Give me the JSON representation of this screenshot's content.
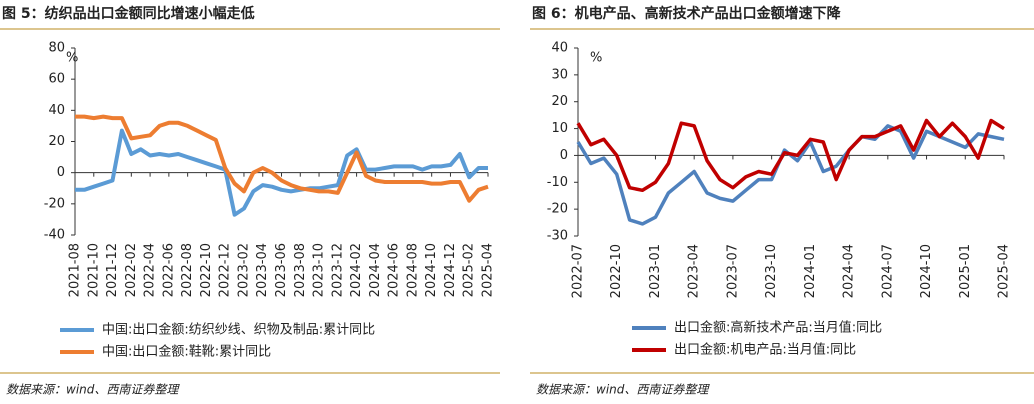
{
  "chart_data": [
    {
      "type": "line",
      "title": "图 5：纺织品出口金额同比增速小幅走低",
      "categories": [
        "2021-08",
        null,
        "2021-10",
        null,
        "2021-12",
        null,
        "2022-02",
        null,
        "2022-04",
        null,
        "2022-06",
        null,
        "2022-08",
        null,
        "2022-10",
        null,
        "2022-12",
        null,
        "2023-02",
        null,
        "2023-04",
        null,
        "2023-06",
        null,
        "2023-08",
        null,
        "2023-10",
        null,
        "2023-12",
        null,
        "2024-02",
        null,
        "2024-04",
        null,
        "2024-06",
        null,
        "2024-08",
        null,
        "2024-10",
        null,
        "2024-12",
        null,
        "2025-02",
        null,
        "2025-04"
      ],
      "series": [
        {
          "name": "中国:出口金额:纺织纱线、织物及制品:累计同比",
          "color": "#5b9bd5",
          "values": [
            -11,
            -11,
            -9,
            -7,
            -5,
            27,
            12,
            15,
            11,
            12,
            11,
            12,
            10,
            8,
            6,
            4,
            2,
            -27,
            -23,
            -12,
            -8,
            -9,
            -11,
            -12,
            -11,
            -10,
            -10,
            -9,
            -8,
            11,
            15,
            2,
            2,
            3,
            4,
            4,
            4,
            2,
            4,
            4,
            5,
            12,
            -3,
            3,
            3
          ]
        },
        {
          "name": "中国:出口金额:鞋靴:累计同比",
          "color": "#ed7d31",
          "values": [
            36,
            36,
            35,
            36,
            35,
            35,
            22,
            23,
            24,
            30,
            32,
            32,
            30,
            27,
            24,
            21,
            3,
            -7,
            -12,
            0,
            3,
            0,
            -5,
            -8,
            -10,
            -11,
            -12,
            -12,
            -13,
            0,
            13,
            -2,
            -5,
            -6,
            -6,
            -6,
            -6,
            -6,
            -7,
            -7,
            -6,
            -6,
            -18,
            -11,
            -9
          ]
        }
      ],
      "ylim": [
        -40,
        80
      ],
      "yticks": [
        -40,
        -20,
        0,
        20,
        40,
        60,
        80
      ],
      "y_unit": "%",
      "source": "数据来源：wind、西南证券整理"
    },
    {
      "type": "line",
      "title": "图 6：机电产品、高新技术产品出口金额增速下降",
      "categories": [
        "2022-07",
        null,
        null,
        "2022-10",
        null,
        null,
        "2023-01",
        null,
        null,
        "2023-04",
        null,
        null,
        "2023-07",
        null,
        null,
        "2023-10",
        null,
        null,
        "2024-01",
        null,
        null,
        "2024-04",
        null,
        null,
        "2024-07",
        null,
        null,
        "2024-10",
        null,
        null,
        "2025-01",
        null,
        null,
        "2025-04"
      ],
      "series": [
        {
          "name": "出口金额:高新技术产品:当月值:同比",
          "color": "#4f81bd",
          "values": [
            5,
            -3,
            -1,
            -7,
            -24,
            -25.5,
            -23,
            -14,
            -10,
            -6,
            -14,
            -16,
            -17,
            -13,
            -9,
            -9,
            2,
            -2,
            5,
            -6,
            -4,
            2,
            7,
            6,
            11,
            9,
            -1,
            9,
            7,
            5,
            3,
            8,
            7,
            6
          ]
        },
        {
          "name": "出口金额:机电产品:当月值:同比",
          "color": "#c00000",
          "values": [
            12,
            4,
            6,
            0,
            -12,
            -13,
            -10,
            -3,
            12,
            11,
            -2,
            -9,
            -12,
            -8,
            -6,
            -7,
            1,
            0,
            6,
            5,
            -9,
            2,
            7,
            7,
            9,
            11,
            2,
            13,
            7,
            12,
            7,
            -1,
            13,
            10
          ]
        }
      ],
      "ylim": [
        -30,
        40
      ],
      "yticks": [
        -30,
        -20,
        -10,
        0,
        10,
        20,
        30,
        40
      ],
      "y_unit": "%",
      "source": "数据来源：wind、西南证券整理"
    }
  ]
}
